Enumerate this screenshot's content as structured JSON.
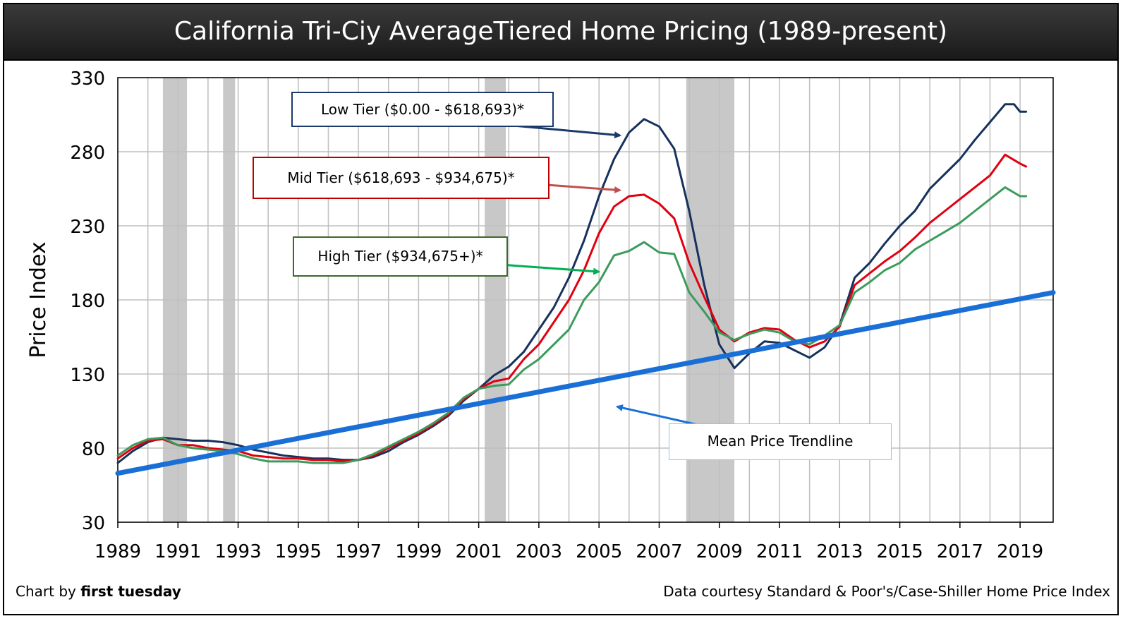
{
  "title": "California Tri-Ciy AverageTiered Home Pricing (1989-present)",
  "footer": {
    "left_prefix": "Chart by ",
    "left_brand": "first tuesday",
    "right": "Data courtesy Standard & Poor's/Case-Shiller Home Price Index"
  },
  "callouts": {
    "low": "Low Tier ($0.00 - $618,693)*",
    "mid": "Mid Tier ($618,693 - $934,675)*",
    "high": "High Tier ($934,675+)*",
    "trend": "Mean Price Trendline"
  },
  "colors": {
    "low": "#16325c",
    "mid": "#e0000f",
    "high": "#3c9b5c",
    "trend": "#1a6fd6",
    "recession": "#c8c8c8",
    "grid": "#bfbfbf",
    "arrow_low": "#1b3a6b",
    "arrow_mid": "#c0504d",
    "arrow_high": "#00b050",
    "arrow_trend": "#1a6fd6"
  },
  "chart_data": {
    "type": "line",
    "ylabel": "Price Index",
    "xlabel": "",
    "xlim": [
      1989,
      2020.1
    ],
    "ylim": [
      30,
      330
    ],
    "y_ticks": [
      30,
      80,
      130,
      180,
      230,
      280,
      330
    ],
    "x_ticks": [
      1989,
      1991,
      1993,
      1995,
      1997,
      1999,
      2001,
      2003,
      2005,
      2007,
      2009,
      2011,
      2013,
      2015,
      2017,
      2019
    ],
    "grid": true,
    "recession_bands": [
      [
        1990.5,
        1991.3
      ],
      [
        1992.5,
        1992.9
      ],
      [
        2001.2,
        2001.9
      ],
      [
        2007.9,
        2009.5
      ]
    ],
    "series": [
      {
        "key": "low",
        "points": [
          [
            1989.0,
            70
          ],
          [
            1989.5,
            78
          ],
          [
            1990.0,
            84
          ],
          [
            1990.5,
            87
          ],
          [
            1991.0,
            86
          ],
          [
            1991.5,
            85
          ],
          [
            1992.0,
            85
          ],
          [
            1992.5,
            84
          ],
          [
            1993.0,
            82
          ],
          [
            1993.5,
            79
          ],
          [
            1994.0,
            77
          ],
          [
            1994.5,
            75
          ],
          [
            1995.0,
            74
          ],
          [
            1995.5,
            73
          ],
          [
            1996.0,
            73
          ],
          [
            1996.5,
            72
          ],
          [
            1997.0,
            72
          ],
          [
            1997.5,
            74
          ],
          [
            1998.0,
            78
          ],
          [
            1998.5,
            84
          ],
          [
            1999.0,
            89
          ],
          [
            1999.5,
            95
          ],
          [
            2000.0,
            102
          ],
          [
            2000.5,
            112
          ],
          [
            2001.0,
            120
          ],
          [
            2001.5,
            129
          ],
          [
            2002.0,
            135
          ],
          [
            2002.5,
            145
          ],
          [
            2003.0,
            160
          ],
          [
            2003.5,
            175
          ],
          [
            2004.0,
            195
          ],
          [
            2004.5,
            220
          ],
          [
            2005.0,
            250
          ],
          [
            2005.5,
            275
          ],
          [
            2006.0,
            293
          ],
          [
            2006.5,
            302
          ],
          [
            2007.0,
            297
          ],
          [
            2007.5,
            282
          ],
          [
            2008.0,
            240
          ],
          [
            2008.5,
            190
          ],
          [
            2009.0,
            150
          ],
          [
            2009.5,
            134
          ],
          [
            2010.0,
            144
          ],
          [
            2010.5,
            152
          ],
          [
            2011.0,
            151
          ],
          [
            2011.5,
            146
          ],
          [
            2012.0,
            141
          ],
          [
            2012.5,
            148
          ],
          [
            2013.0,
            163
          ],
          [
            2013.5,
            195
          ],
          [
            2014.0,
            205
          ],
          [
            2014.5,
            218
          ],
          [
            2015.0,
            230
          ],
          [
            2015.5,
            240
          ],
          [
            2016.0,
            255
          ],
          [
            2016.5,
            265
          ],
          [
            2017.0,
            275
          ],
          [
            2017.5,
            288
          ],
          [
            2018.0,
            300
          ],
          [
            2018.5,
            312
          ],
          [
            2018.8,
            312
          ],
          [
            2019.0,
            307
          ],
          [
            2019.2,
            307
          ]
        ]
      },
      {
        "key": "mid",
        "points": [
          [
            1989.0,
            73
          ],
          [
            1989.5,
            80
          ],
          [
            1990.0,
            85
          ],
          [
            1990.5,
            86
          ],
          [
            1991.0,
            82
          ],
          [
            1991.5,
            82
          ],
          [
            1992.0,
            80
          ],
          [
            1992.5,
            79
          ],
          [
            1993.0,
            78
          ],
          [
            1993.5,
            75
          ],
          [
            1994.0,
            74
          ],
          [
            1994.5,
            73
          ],
          [
            1995.0,
            73
          ],
          [
            1995.5,
            72
          ],
          [
            1996.0,
            72
          ],
          [
            1996.5,
            71
          ],
          [
            1997.0,
            72
          ],
          [
            1997.5,
            75
          ],
          [
            1998.0,
            80
          ],
          [
            1998.5,
            85
          ],
          [
            1999.0,
            90
          ],
          [
            1999.5,
            96
          ],
          [
            2000.0,
            103
          ],
          [
            2000.5,
            113
          ],
          [
            2001.0,
            120
          ],
          [
            2001.5,
            125
          ],
          [
            2002.0,
            127
          ],
          [
            2002.5,
            140
          ],
          [
            2003.0,
            150
          ],
          [
            2003.5,
            165
          ],
          [
            2004.0,
            180
          ],
          [
            2004.5,
            200
          ],
          [
            2005.0,
            225
          ],
          [
            2005.5,
            243
          ],
          [
            2006.0,
            250
          ],
          [
            2006.5,
            251
          ],
          [
            2007.0,
            245
          ],
          [
            2007.5,
            235
          ],
          [
            2008.0,
            205
          ],
          [
            2008.5,
            182
          ],
          [
            2009.0,
            160
          ],
          [
            2009.5,
            152
          ],
          [
            2010.0,
            158
          ],
          [
            2010.5,
            161
          ],
          [
            2011.0,
            160
          ],
          [
            2011.5,
            153
          ],
          [
            2012.0,
            148
          ],
          [
            2012.5,
            152
          ],
          [
            2013.0,
            162
          ],
          [
            2013.5,
            190
          ],
          [
            2014.0,
            198
          ],
          [
            2014.5,
            206
          ],
          [
            2015.0,
            213
          ],
          [
            2015.5,
            222
          ],
          [
            2016.0,
            232
          ],
          [
            2016.5,
            240
          ],
          [
            2017.0,
            248
          ],
          [
            2017.5,
            256
          ],
          [
            2018.0,
            264
          ],
          [
            2018.5,
            278
          ],
          [
            2019.0,
            272
          ],
          [
            2019.2,
            270
          ]
        ]
      },
      {
        "key": "high",
        "points": [
          [
            1989.0,
            75
          ],
          [
            1989.5,
            82
          ],
          [
            1990.0,
            86
          ],
          [
            1990.5,
            87
          ],
          [
            1991.0,
            82
          ],
          [
            1991.5,
            80
          ],
          [
            1992.0,
            79
          ],
          [
            1992.5,
            78
          ],
          [
            1993.0,
            76
          ],
          [
            1993.5,
            73
          ],
          [
            1994.0,
            71
          ],
          [
            1994.5,
            71
          ],
          [
            1995.0,
            71
          ],
          [
            1995.5,
            70
          ],
          [
            1996.0,
            70
          ],
          [
            1996.5,
            70
          ],
          [
            1997.0,
            72
          ],
          [
            1997.5,
            76
          ],
          [
            1998.0,
            81
          ],
          [
            1998.5,
            86
          ],
          [
            1999.0,
            91
          ],
          [
            1999.5,
            97
          ],
          [
            2000.0,
            104
          ],
          [
            2000.5,
            114
          ],
          [
            2001.0,
            120
          ],
          [
            2001.5,
            122
          ],
          [
            2002.0,
            123
          ],
          [
            2002.5,
            133
          ],
          [
            2003.0,
            140
          ],
          [
            2003.5,
            150
          ],
          [
            2004.0,
            160
          ],
          [
            2004.5,
            180
          ],
          [
            2005.0,
            192
          ],
          [
            2005.5,
            210
          ],
          [
            2006.0,
            213
          ],
          [
            2006.5,
            219
          ],
          [
            2007.0,
            212
          ],
          [
            2007.5,
            211
          ],
          [
            2008.0,
            185
          ],
          [
            2008.5,
            172
          ],
          [
            2009.0,
            158
          ],
          [
            2009.5,
            153
          ],
          [
            2010.0,
            157
          ],
          [
            2010.5,
            160
          ],
          [
            2011.0,
            158
          ],
          [
            2011.5,
            152
          ],
          [
            2012.0,
            150
          ],
          [
            2012.5,
            156
          ],
          [
            2013.0,
            163
          ],
          [
            2013.5,
            185
          ],
          [
            2014.0,
            192
          ],
          [
            2014.5,
            200
          ],
          [
            2015.0,
            205
          ],
          [
            2015.5,
            214
          ],
          [
            2016.0,
            220
          ],
          [
            2016.5,
            226
          ],
          [
            2017.0,
            232
          ],
          [
            2017.5,
            240
          ],
          [
            2018.0,
            248
          ],
          [
            2018.5,
            256
          ],
          [
            2019.0,
            250
          ],
          [
            2019.2,
            250
          ]
        ]
      },
      {
        "key": "trend",
        "points": [
          [
            1989.0,
            63
          ],
          [
            2020.1,
            185
          ]
        ]
      }
    ],
    "arrows": [
      {
        "key": "arrow_low",
        "from": [
          1996.6,
          308
        ],
        "to": [
          2005.7,
          291
        ]
      },
      {
        "key": "arrow_mid",
        "from": [
          1997.7,
          266
        ],
        "to": [
          2005.7,
          254
        ]
      },
      {
        "key": "arrow_high",
        "from": [
          1996.2,
          212
        ],
        "to": [
          2005.0,
          199
        ]
      },
      {
        "key": "arrow_trend",
        "from": [
          2011.3,
          82
        ],
        "to": [
          2005.6,
          108
        ]
      }
    ]
  }
}
